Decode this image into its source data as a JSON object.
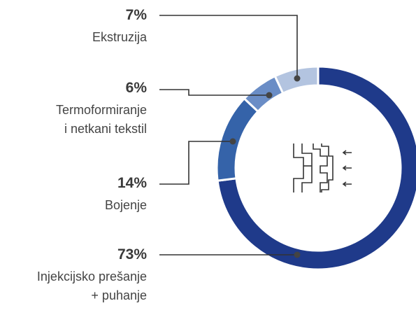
{
  "chart_data": {
    "type": "donut",
    "categories": [
      "Injekcijsko prešanje\n+ puhanje",
      "Bojenje",
      "Termoformiranje\ni netkani tekstil",
      "Ekstruzija"
    ],
    "values": [
      73,
      14,
      6,
      7
    ],
    "value_labels": [
      "73%",
      "14%",
      "6%",
      "7%"
    ],
    "colors": [
      "#1f3a8a",
      "#3563a9",
      "#6a8dc6",
      "#b3c4e0"
    ]
  }
}
